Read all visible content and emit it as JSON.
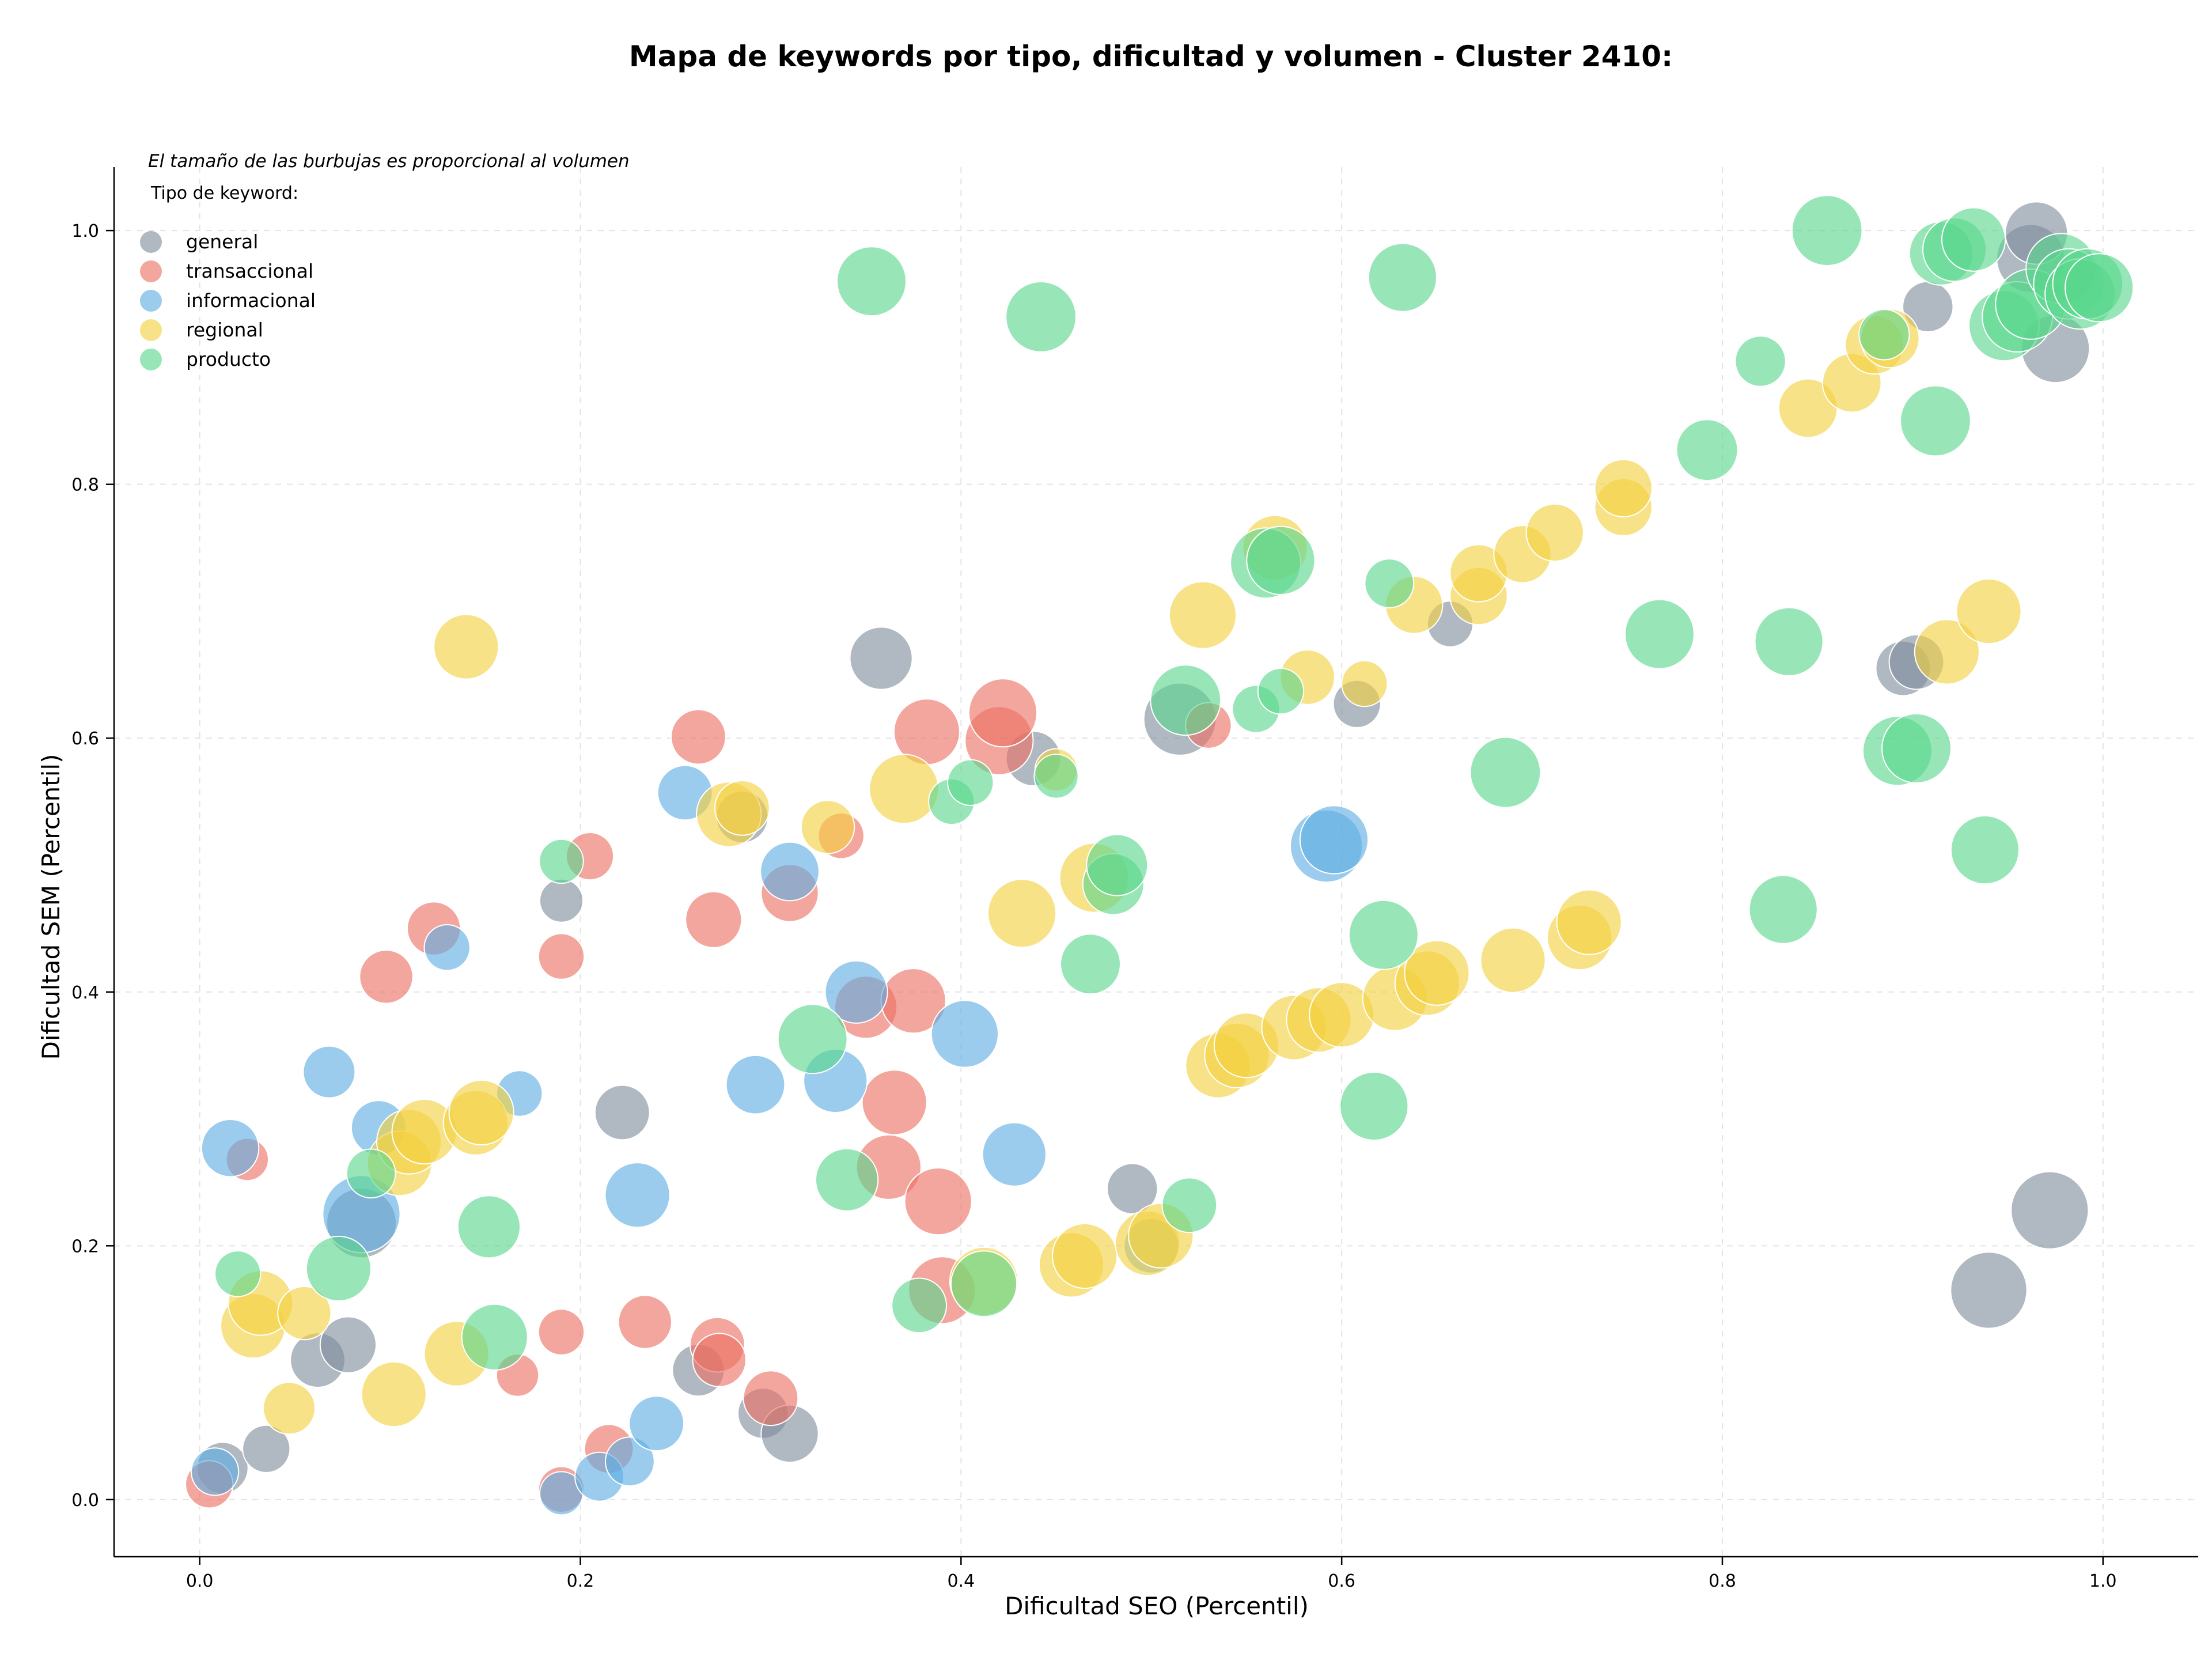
{
  "chart_data": {
    "type": "scatter",
    "title": "Mapa de keywords por tipo, dificultad y volumen - Cluster 2410:",
    "xlabel": "Dificultad SEO (Percentil)",
    "ylabel": "Dificultad SEM (Percentil)",
    "annotation": "El tamaño de las burbujas es proporcional al volumen",
    "legend_title": "Tipo de keyword:",
    "legend_location": "top-left",
    "grid": true,
    "xlim": [
      -0.045,
      1.05
    ],
    "ylim": [
      -0.045,
      1.05
    ],
    "x_ticks": [
      "0.0",
      "0.2",
      "0.4",
      "0.6",
      "0.8",
      "1.0"
    ],
    "y_ticks": [
      "0.0",
      "0.2",
      "0.4",
      "0.6",
      "0.8",
      "1.0"
    ],
    "series": [
      {
        "name": "general",
        "color": "#7f8c9d",
        "points": [
          [
            0.012,
            0.025,
            0.35
          ],
          [
            0.035,
            0.04,
            0.3
          ],
          [
            0.062,
            0.11,
            0.4
          ],
          [
            0.078,
            0.122,
            0.42
          ],
          [
            0.085,
            0.218,
            0.65
          ],
          [
            0.19,
            0.472,
            0.25
          ],
          [
            0.222,
            0.305,
            0.4
          ],
          [
            0.262,
            0.102,
            0.36
          ],
          [
            0.285,
            0.538,
            0.36
          ],
          [
            0.296,
            0.068,
            0.34
          ],
          [
            0.31,
            0.052,
            0.44
          ],
          [
            0.358,
            0.663,
            0.52
          ],
          [
            0.438,
            0.584,
            0.4
          ],
          [
            0.49,
            0.245,
            0.34
          ],
          [
            0.515,
            0.615,
            0.7
          ],
          [
            0.608,
            0.627,
            0.3
          ],
          [
            0.657,
            0.69,
            0.28
          ],
          [
            0.895,
            0.655,
            0.4
          ],
          [
            0.902,
            0.66,
            0.4
          ],
          [
            0.908,
            0.94,
            0.34
          ],
          [
            0.94,
            0.165,
            0.78
          ],
          [
            0.962,
            0.978,
            0.62
          ],
          [
            0.965,
            0.998,
            0.52
          ],
          [
            0.972,
            0.228,
            0.8
          ],
          [
            0.975,
            0.907,
            0.62
          ]
        ]
      },
      {
        "name": "transaccional",
        "color": "#ec7063",
        "points": [
          [
            0.005,
            0.012,
            0.3
          ],
          [
            0.025,
            0.268,
            0.24
          ],
          [
            0.098,
            0.412,
            0.38
          ],
          [
            0.123,
            0.45,
            0.38
          ],
          [
            0.167,
            0.098,
            0.24
          ],
          [
            0.19,
            0.428,
            0.28
          ],
          [
            0.19,
            0.132,
            0.28
          ],
          [
            0.19,
            0.008,
            0.28
          ],
          [
            0.205,
            0.507,
            0.3
          ],
          [
            0.215,
            0.04,
            0.32
          ],
          [
            0.234,
            0.14,
            0.38
          ],
          [
            0.262,
            0.601,
            0.4
          ],
          [
            0.27,
            0.457,
            0.42
          ],
          [
            0.272,
            0.122,
            0.4
          ],
          [
            0.273,
            0.11,
            0.38
          ],
          [
            0.3,
            0.08,
            0.4
          ],
          [
            0.31,
            0.478,
            0.44
          ],
          [
            0.337,
            0.523,
            0.28
          ],
          [
            0.35,
            0.388,
            0.52
          ],
          [
            0.362,
            0.262,
            0.56
          ],
          [
            0.365,
            0.313,
            0.56
          ],
          [
            0.375,
            0.393,
            0.56
          ],
          [
            0.382,
            0.605,
            0.58
          ],
          [
            0.388,
            0.235,
            0.6
          ],
          [
            0.39,
            0.165,
            0.6
          ],
          [
            0.42,
            0.598,
            0.62
          ],
          [
            0.422,
            0.62,
            0.62
          ],
          [
            0.53,
            0.61,
            0.28
          ]
        ]
      },
      {
        "name": "informacional",
        "color": "#5dade2",
        "points": [
          [
            0.008,
            0.022,
            0.3
          ],
          [
            0.016,
            0.277,
            0.44
          ],
          [
            0.068,
            0.337,
            0.36
          ],
          [
            0.094,
            0.293,
            0.4
          ],
          [
            0.085,
            0.225,
            0.8
          ],
          [
            0.13,
            0.435,
            0.28
          ],
          [
            0.168,
            0.32,
            0.28
          ],
          [
            0.19,
            0.005,
            0.25
          ],
          [
            0.21,
            0.018,
            0.32
          ],
          [
            0.226,
            0.03,
            0.32
          ],
          [
            0.23,
            0.24,
            0.56
          ],
          [
            0.24,
            0.06,
            0.4
          ],
          [
            0.255,
            0.557,
            0.4
          ],
          [
            0.292,
            0.327,
            0.46
          ],
          [
            0.31,
            0.495,
            0.46
          ],
          [
            0.334,
            0.33,
            0.54
          ],
          [
            0.345,
            0.4,
            0.52
          ],
          [
            0.402,
            0.367,
            0.6
          ],
          [
            0.428,
            0.272,
            0.54
          ],
          [
            0.5,
            0.2,
            0.4
          ],
          [
            0.592,
            0.515,
            0.7
          ],
          [
            0.596,
            0.52,
            0.62
          ]
        ]
      },
      {
        "name": "regional",
        "color": "#f4d03f",
        "points": [
          [
            0.028,
            0.137,
            0.56
          ],
          [
            0.032,
            0.155,
            0.56
          ],
          [
            0.047,
            0.072,
            0.36
          ],
          [
            0.055,
            0.147,
            0.38
          ],
          [
            0.102,
            0.083,
            0.56
          ],
          [
            0.105,
            0.265,
            0.56
          ],
          [
            0.11,
            0.282,
            0.56
          ],
          [
            0.118,
            0.29,
            0.56
          ],
          [
            0.135,
            0.115,
            0.56
          ],
          [
            0.14,
            0.672,
            0.56
          ],
          [
            0.145,
            0.297,
            0.56
          ],
          [
            0.148,
            0.305,
            0.56
          ],
          [
            0.278,
            0.54,
            0.56
          ],
          [
            0.285,
            0.545,
            0.4
          ],
          [
            0.33,
            0.53,
            0.38
          ],
          [
            0.37,
            0.56,
            0.64
          ],
          [
            0.412,
            0.172,
            0.62
          ],
          [
            0.432,
            0.462,
            0.62
          ],
          [
            0.45,
            0.575,
            0.24
          ],
          [
            0.458,
            0.185,
            0.56
          ],
          [
            0.465,
            0.192,
            0.56
          ],
          [
            0.47,
            0.49,
            0.64
          ],
          [
            0.498,
            0.202,
            0.56
          ],
          [
            0.505,
            0.208,
            0.56
          ],
          [
            0.527,
            0.697,
            0.6
          ],
          [
            0.535,
            0.342,
            0.56
          ],
          [
            0.545,
            0.35,
            0.56
          ],
          [
            0.55,
            0.358,
            0.56
          ],
          [
            0.565,
            0.75,
            0.56
          ],
          [
            0.575,
            0.372,
            0.56
          ],
          [
            0.582,
            0.648,
            0.4
          ],
          [
            0.588,
            0.378,
            0.56
          ],
          [
            0.6,
            0.382,
            0.56
          ],
          [
            0.612,
            0.643,
            0.28
          ],
          [
            0.628,
            0.395,
            0.56
          ],
          [
            0.638,
            0.705,
            0.44
          ],
          [
            0.645,
            0.407,
            0.56
          ],
          [
            0.65,
            0.415,
            0.56
          ],
          [
            0.672,
            0.712,
            0.44
          ],
          [
            0.672,
            0.73,
            0.44
          ],
          [
            0.69,
            0.425,
            0.56
          ],
          [
            0.695,
            0.745,
            0.44
          ],
          [
            0.712,
            0.762,
            0.44
          ],
          [
            0.725,
            0.443,
            0.56
          ],
          [
            0.73,
            0.455,
            0.56
          ],
          [
            0.748,
            0.782,
            0.44
          ],
          [
            0.748,
            0.797,
            0.44
          ],
          [
            0.845,
            0.86,
            0.46
          ],
          [
            0.868,
            0.88,
            0.46
          ],
          [
            0.88,
            0.91,
            0.46
          ],
          [
            0.888,
            0.915,
            0.46
          ],
          [
            0.918,
            0.668,
            0.56
          ],
          [
            0.94,
            0.7,
            0.56
          ]
        ]
      },
      {
        "name": "producto",
        "color": "#58d68d",
        "points": [
          [
            0.02,
            0.178,
            0.28
          ],
          [
            0.073,
            0.182,
            0.56
          ],
          [
            0.09,
            0.257,
            0.32
          ],
          [
            0.152,
            0.215,
            0.52
          ],
          [
            0.155,
            0.128,
            0.58
          ],
          [
            0.19,
            0.503,
            0.26
          ],
          [
            0.322,
            0.363,
            0.64
          ],
          [
            0.34,
            0.252,
            0.52
          ],
          [
            0.353,
            0.96,
            0.64
          ],
          [
            0.378,
            0.153,
            0.4
          ],
          [
            0.395,
            0.55,
            0.28
          ],
          [
            0.405,
            0.565,
            0.28
          ],
          [
            0.412,
            0.17,
            0.58
          ],
          [
            0.442,
            0.932,
            0.66
          ],
          [
            0.45,
            0.57,
            0.26
          ],
          [
            0.468,
            0.422,
            0.48
          ],
          [
            0.48,
            0.485,
            0.5
          ],
          [
            0.482,
            0.5,
            0.5
          ],
          [
            0.52,
            0.232,
            0.4
          ],
          [
            0.518,
            0.63,
            0.66
          ],
          [
            0.555,
            0.623,
            0.3
          ],
          [
            0.56,
            0.738,
            0.66
          ],
          [
            0.568,
            0.74,
            0.62
          ],
          [
            0.568,
            0.637,
            0.28
          ],
          [
            0.617,
            0.31,
            0.62
          ],
          [
            0.622,
            0.445,
            0.64
          ],
          [
            0.625,
            0.722,
            0.32
          ],
          [
            0.632,
            0.963,
            0.62
          ],
          [
            0.686,
            0.573,
            0.66
          ],
          [
            0.767,
            0.682,
            0.64
          ],
          [
            0.792,
            0.827,
            0.5
          ],
          [
            0.82,
            0.897,
            0.34
          ],
          [
            0.832,
            0.465,
            0.62
          ],
          [
            0.835,
            0.676,
            0.62
          ],
          [
            0.855,
            1.0,
            0.66
          ],
          [
            0.885,
            0.918,
            0.34
          ],
          [
            0.892,
            0.59,
            0.64
          ],
          [
            0.902,
            0.592,
            0.64
          ],
          [
            0.912,
            0.85,
            0.66
          ],
          [
            0.915,
            0.982,
            0.54
          ],
          [
            0.922,
            0.985,
            0.54
          ],
          [
            0.932,
            0.993,
            0.54
          ],
          [
            0.938,
            0.512,
            0.62
          ],
          [
            0.948,
            0.925,
            0.66
          ],
          [
            0.955,
            0.932,
            0.66
          ],
          [
            0.962,
            0.942,
            0.66
          ],
          [
            0.978,
            0.97,
            0.66
          ],
          [
            0.982,
            0.958,
            0.66
          ],
          [
            0.988,
            0.95,
            0.66
          ],
          [
            0.992,
            0.958,
            0.66
          ],
          [
            0.998,
            0.955,
            0.62
          ]
        ]
      }
    ]
  }
}
